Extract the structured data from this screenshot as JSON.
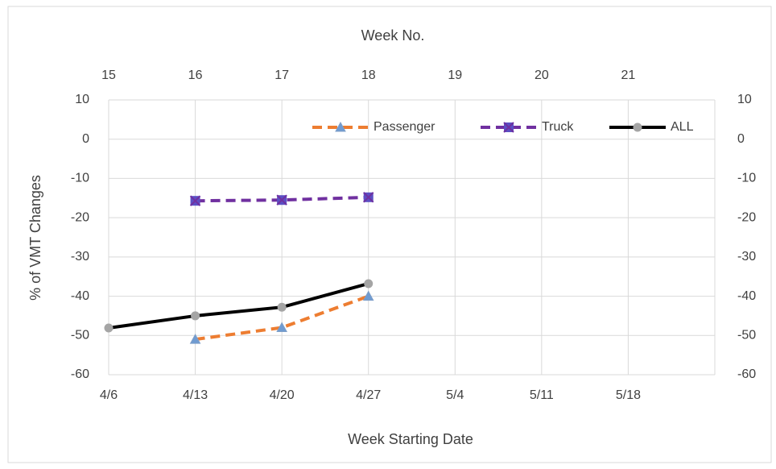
{
  "chart_data": {
    "type": "line",
    "x_title": "Week Starting Date",
    "x2_title": "Week No.",
    "y_title": "% of VMT Changes",
    "categories": [
      "4/6",
      "4/13",
      "4/20",
      "4/27",
      "5/4",
      "5/11",
      "5/18",
      null
    ],
    "top_categories": [
      15,
      16,
      17,
      18,
      19,
      20,
      21,
      null
    ],
    "ylim": [
      -60,
      10
    ],
    "yticks": [
      -60,
      -50,
      -40,
      -30,
      -20,
      -10,
      0,
      10
    ],
    "y2lim": [
      -60,
      10
    ],
    "y2ticks": [
      -60,
      -50,
      -40,
      -30,
      -20,
      -10,
      0,
      10
    ],
    "grid": true,
    "legend": "top",
    "series": [
      {
        "name": "Passenger",
        "color": "#ed7d31",
        "dash": true,
        "marker": "triangle",
        "marker_color": "#6f9bd1",
        "values": [
          null,
          -51,
          -48,
          -40,
          null,
          null,
          null,
          null
        ]
      },
      {
        "name": "Truck",
        "color": "#7030a0",
        "dash": true,
        "marker": "square-x",
        "marker_color": "#5b4fc4",
        "values": [
          null,
          -15.7,
          -15.5,
          -14.8,
          null,
          null,
          null,
          null
        ]
      },
      {
        "name": "ALL",
        "color": "#000000",
        "dash": false,
        "marker": "circle",
        "marker_color": "#a5a5a5",
        "values": [
          -48.1,
          -45,
          -42.8,
          -36.8,
          null,
          null,
          null,
          null
        ]
      }
    ]
  }
}
